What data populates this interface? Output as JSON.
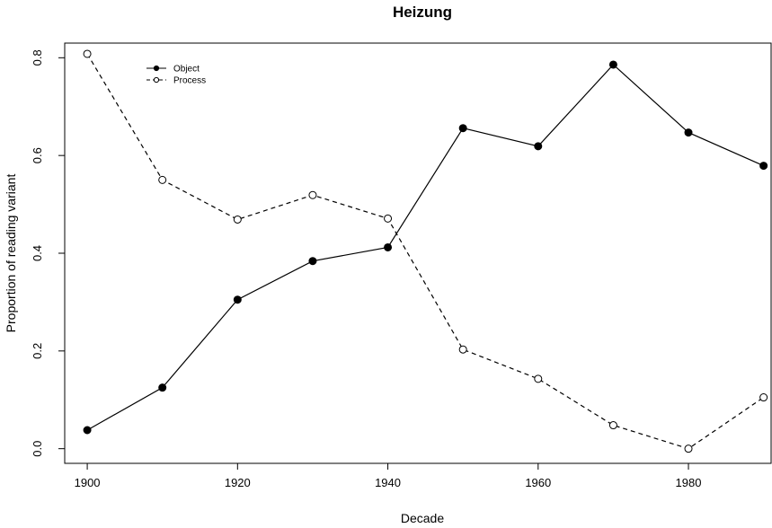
{
  "chart_data": {
    "type": "line",
    "title": "Heizung",
    "xlabel": "Decade",
    "ylabel": "Proportion of reading variant",
    "x": [
      1900,
      1910,
      1920,
      1930,
      1940,
      1950,
      1960,
      1970,
      1980,
      1990
    ],
    "xlim": [
      1897,
      1991
    ],
    "ylim": [
      -0.03,
      0.83
    ],
    "xticks": [
      1900,
      1920,
      1940,
      1960,
      1980
    ],
    "yticks": [
      0.0,
      0.2,
      0.4,
      0.6,
      0.8
    ],
    "xtick_labels": [
      "1900",
      "1920",
      "1940",
      "1960",
      "1980"
    ],
    "ytick_labels": [
      "0.0",
      "0.2",
      "0.4",
      "0.6",
      "0.8"
    ],
    "grid": false,
    "legend_position": "top-left",
    "series": [
      {
        "name": "Object",
        "line_style": "solid",
        "marker": "filled-circle",
        "color": "#000000",
        "values": [
          0.038,
          0.125,
          0.305,
          0.384,
          0.412,
          0.656,
          0.619,
          0.786,
          0.647,
          0.579
        ]
      },
      {
        "name": "Process",
        "line_style": "dashed",
        "marker": "open-circle",
        "color": "#000000",
        "values": [
          0.808,
          0.55,
          0.469,
          0.519,
          0.471,
          0.203,
          0.143,
          0.048,
          0.0,
          0.105
        ]
      }
    ]
  }
}
